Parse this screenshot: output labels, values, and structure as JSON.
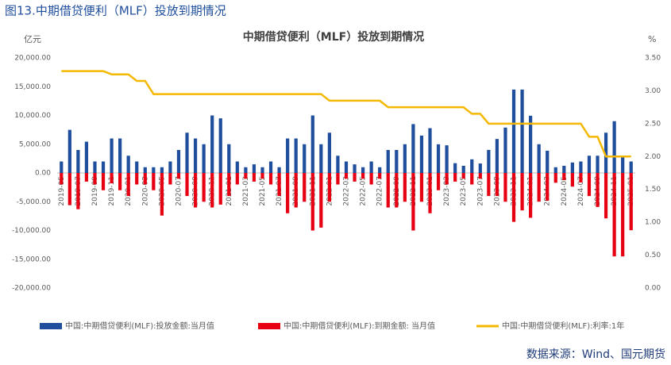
{
  "header": {
    "title": "图13.中期借贷便利（MLF）投放到期情况"
  },
  "chart_data": {
    "type": "bar_line",
    "title": "中期借贷便利（MLF）投放到期情况",
    "y_label": "亿元",
    "y2_label": "%",
    "categories": [
      "2019-05",
      null,
      "2019-07",
      null,
      "2019-09",
      null,
      "2019-11",
      null,
      "2020-01",
      null,
      "2020-03",
      null,
      "2020-05",
      null,
      "2020-07",
      null,
      "2020-09",
      null,
      "2020-11",
      null,
      "2021-01",
      null,
      "2021-03",
      null,
      "2021-05",
      null,
      "2021-07",
      null,
      "2021-09",
      null,
      "2021-11",
      null,
      "2022-01",
      null,
      "2022-03",
      null,
      "2022-05",
      null,
      "2022-07",
      null,
      "2022-09",
      null,
      "2022-11",
      null,
      "2023-01",
      null,
      "2023-03",
      null,
      "2023-05",
      null,
      "2023-07",
      null,
      "2023-09",
      null,
      "2023-11",
      null,
      "2024-01",
      null,
      "2024-03",
      null,
      "2024-05",
      null,
      "2024-07",
      null,
      "2024-09",
      null,
      "2024-11",
      null,
      "2025-01"
    ],
    "series": [
      {
        "name": "中国:中期借贷便利(MLF):投放金额:当月值",
        "color": "#1f4e9c",
        "kind": "bar",
        "values": [
          2000,
          7500,
          4000,
          5440,
          2000,
          2000,
          6000,
          6000,
          3000,
          2000,
          1000,
          1000,
          1000,
          2000,
          4000,
          7000,
          6000,
          5000,
          10000,
          9500,
          5000,
          2000,
          1000,
          1500,
          1000,
          2000,
          1000,
          6000,
          6000,
          5000,
          10000,
          5000,
          7000,
          3000,
          2000,
          1500,
          1000,
          2000,
          1000,
          4000,
          4000,
          5000,
          8500,
          6500,
          7790,
          4990,
          4810,
          1700,
          1250,
          2370,
          1650,
          4010,
          5910,
          7890,
          14500,
          14500,
          9950,
          5000,
          3870,
          1000,
          1250,
          1820,
          2000,
          3000,
          3000,
          7000,
          9000,
          3000,
          2000
        ]
      },
      {
        "name": "中国:中期借贷便利(MLF):到期金额:  当月值",
        "color": "#e60012",
        "kind": "bar",
        "values": [
          -2000,
          -5600,
          -6300,
          -1500,
          -2000,
          -3000,
          -1800,
          -3000,
          -4000,
          -2000,
          -2000,
          -3000,
          -7400,
          -2000,
          -1000,
          -4000,
          -6000,
          -5000,
          -6000,
          -5500,
          -4000,
          -2000,
          -1000,
          -1500,
          -1000,
          -2000,
          -4000,
          -7000,
          -6000,
          -5000,
          -10000,
          -9500,
          -5000,
          -2000,
          -1000,
          -1500,
          -1000,
          -2000,
          -1000,
          -6000,
          -6000,
          -5000,
          -10000,
          -5000,
          -7000,
          -3000,
          -2000,
          -1500,
          -1000,
          -2000,
          -1000,
          -4000,
          -4000,
          -5000,
          -8500,
          -6500,
          -7790,
          -4990,
          -4810,
          -1700,
          -1250,
          -2370,
          -1650,
          -4010,
          -5910,
          -7890,
          -14500,
          -14500,
          -9950
        ]
      },
      {
        "name": "中国:中期借贷便利(MLF):利率:1年",
        "color": "#f5b800",
        "kind": "line",
        "axis": "y2",
        "values": [
          3.3,
          3.3,
          3.3,
          3.3,
          3.3,
          3.3,
          3.25,
          3.25,
          3.25,
          3.15,
          3.15,
          2.95,
          2.95,
          2.95,
          2.95,
          2.95,
          2.95,
          2.95,
          2.95,
          2.95,
          2.95,
          2.95,
          2.95,
          2.95,
          2.95,
          2.95,
          2.95,
          2.95,
          2.95,
          2.95,
          2.95,
          2.95,
          2.85,
          2.85,
          2.85,
          2.85,
          2.85,
          2.85,
          2.85,
          2.75,
          2.75,
          2.75,
          2.75,
          2.75,
          2.75,
          2.75,
          2.75,
          2.75,
          2.75,
          2.65,
          2.65,
          2.5,
          2.5,
          2.5,
          2.5,
          2.5,
          2.5,
          2.5,
          2.5,
          2.5,
          2.5,
          2.5,
          2.5,
          2.3,
          2.3,
          2.0,
          2.0,
          2.0,
          2.0
        ]
      }
    ],
    "ylim": [
      -20000,
      20000
    ],
    "yticks": [
      {
        "value": -20000,
        "label": "-20,000.00"
      },
      {
        "value": -15000,
        "label": "-15,000.00"
      },
      {
        "value": -10000,
        "label": "-10,000.00"
      },
      {
        "value": -5000,
        "label": "-5,000.00"
      },
      {
        "value": 0,
        "label": "0.00"
      },
      {
        "value": 5000,
        "label": "5,000.00"
      },
      {
        "value": 10000,
        "label": "10,000.00"
      },
      {
        "value": 15000,
        "label": "15,000.00"
      },
      {
        "value": 20000,
        "label": "20,000.00"
      }
    ],
    "y2lim": [
      0,
      3.5
    ],
    "y2ticks": [
      {
        "value": 0,
        "label": "0.00"
      },
      {
        "value": 0.5,
        "label": "0.50"
      },
      {
        "value": 1,
        "label": "1.00"
      },
      {
        "value": 1.5,
        "label": "1.50"
      },
      {
        "value": 2,
        "label": "2.00"
      },
      {
        "value": 2.5,
        "label": "2.50"
      },
      {
        "value": 3,
        "label": "3.00"
      },
      {
        "value": 3.5,
        "label": "3.50"
      }
    ],
    "legend": "bottom"
  },
  "footer": {
    "source": "数据来源：Wind、国元期货"
  }
}
